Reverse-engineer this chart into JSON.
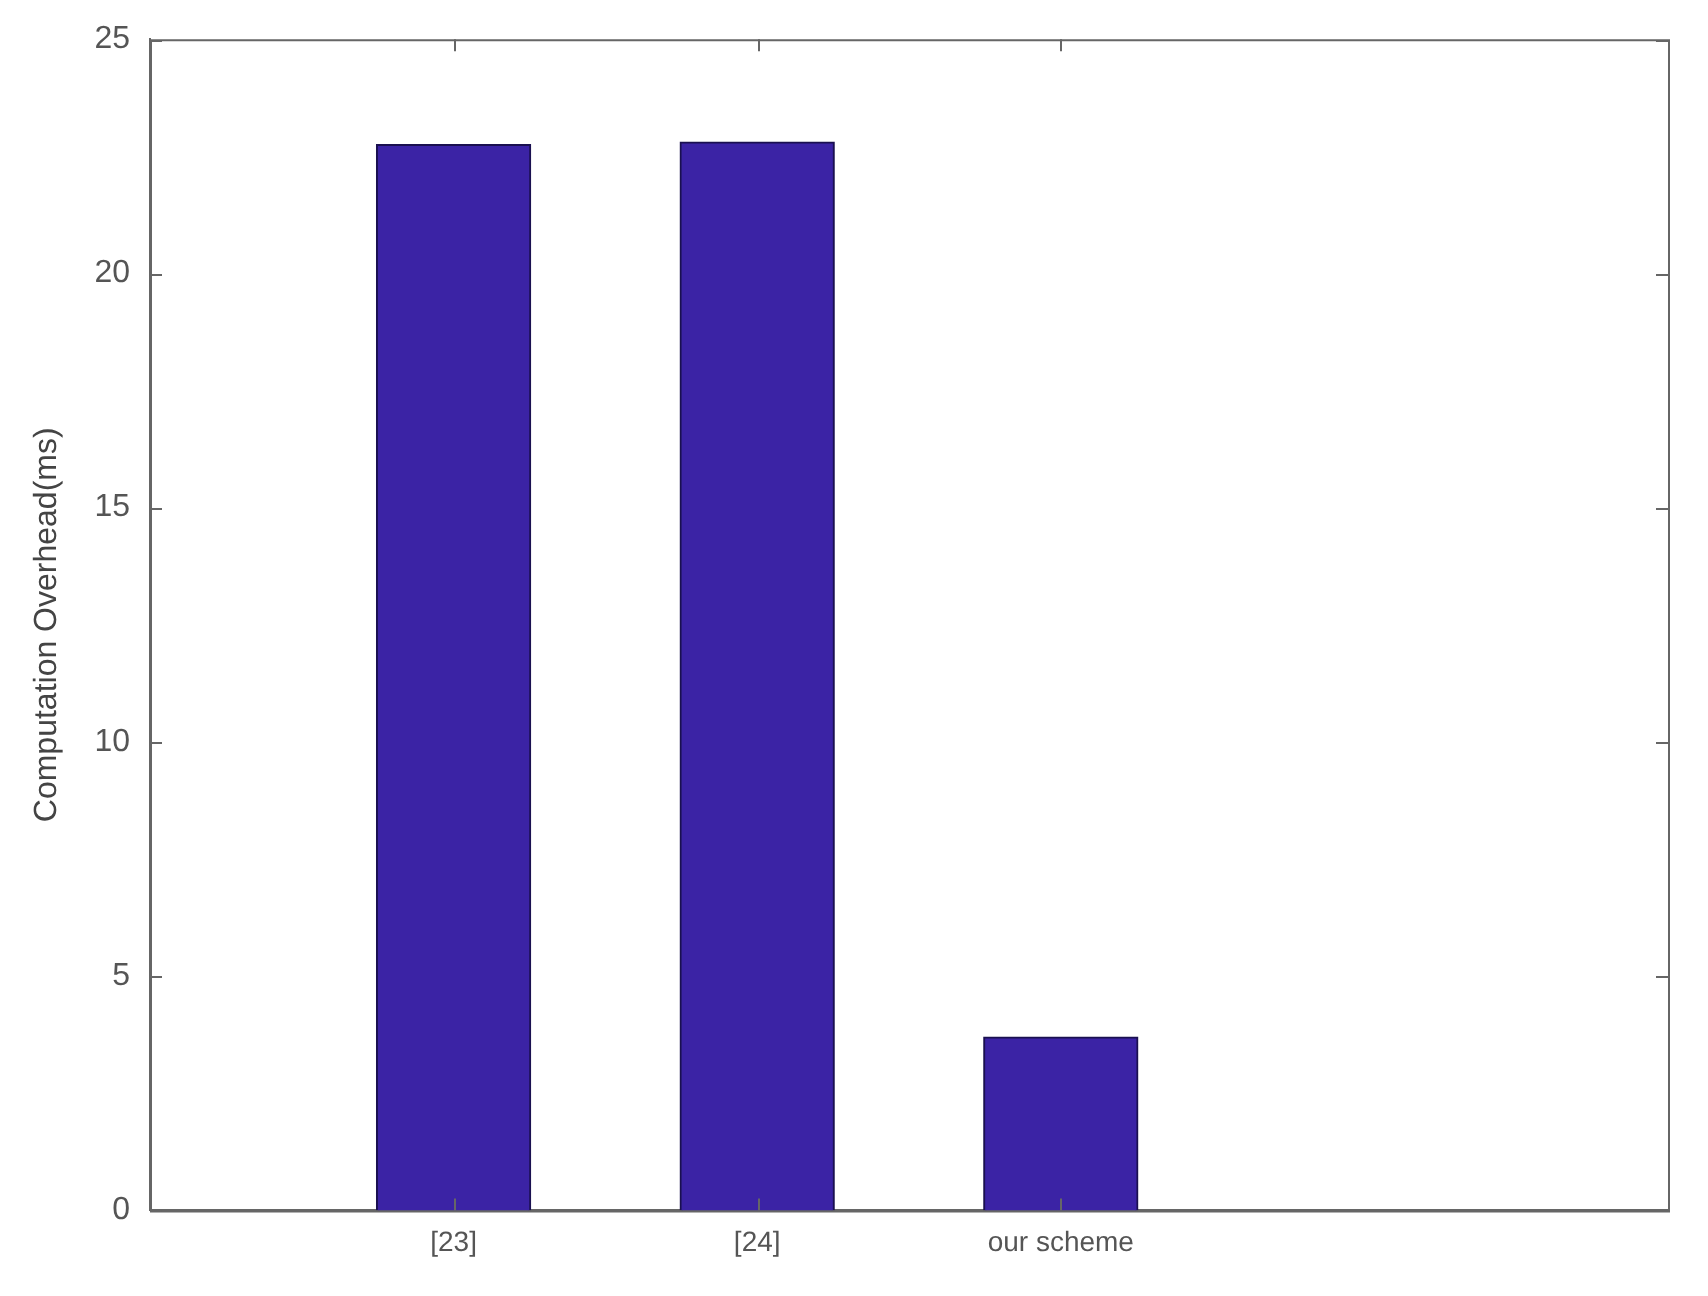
{
  "chart_data": {
    "type": "bar",
    "ylabel": "Computation Overhead(ms)",
    "categories": [
      "[23]",
      "[24]",
      "our scheme"
    ],
    "values": [
      22.75,
      22.8,
      3.7
    ],
    "color": "#3b23a5",
    "ylim": [
      0,
      25
    ],
    "yticks": [
      0,
      5,
      10,
      15,
      20,
      25
    ],
    "grid": false,
    "legend": false
  }
}
